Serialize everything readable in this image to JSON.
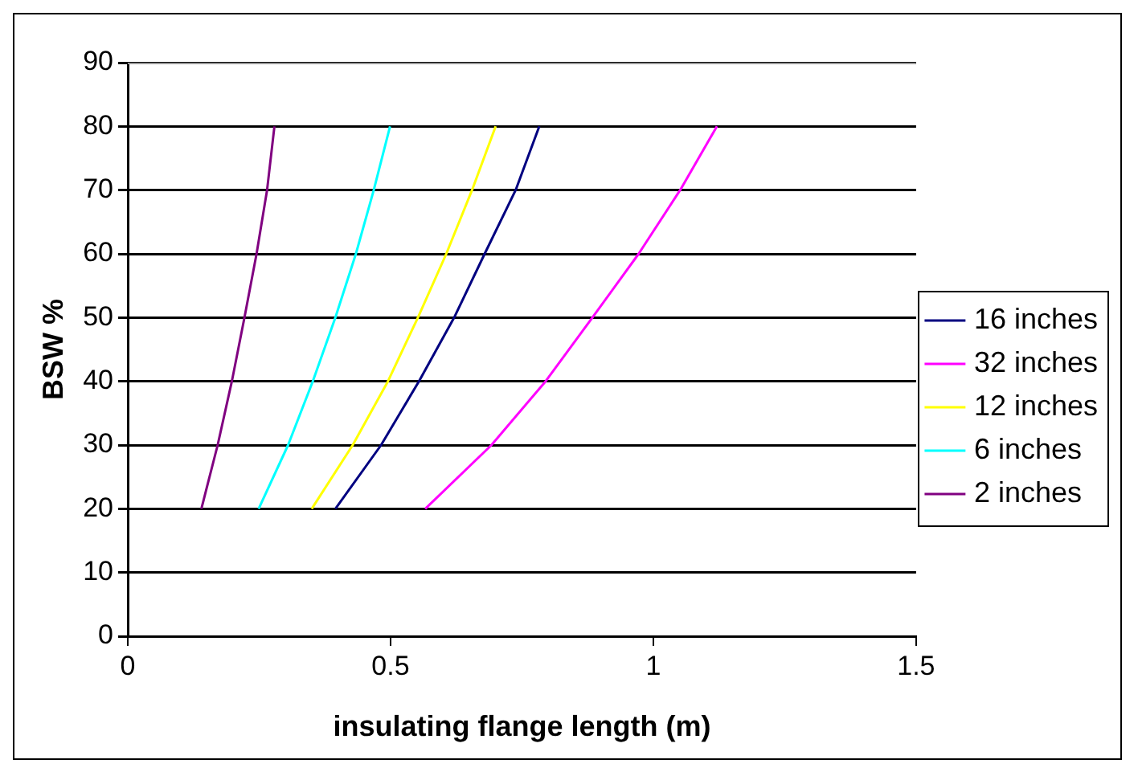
{
  "chart_data": {
    "type": "line",
    "xlabel": "insulating flange length (m)",
    "ylabel": "BSW %",
    "xlim": [
      0,
      1.5
    ],
    "xticks": [
      0,
      0.5,
      1,
      1.5
    ],
    "ylim": [
      0,
      90
    ],
    "yticks": [
      0,
      10,
      20,
      30,
      40,
      50,
      60,
      70,
      80,
      90
    ],
    "grid": "y",
    "legend": "right",
    "marker": "none",
    "line_style": "solid",
    "series": [
      {
        "name": "16 inches",
        "color": "#000080",
        "x": [
          0.395,
          0.482,
          0.554,
          0.621,
          0.679,
          0.738,
          0.783
        ],
        "values": [
          20,
          30,
          40,
          50,
          60,
          70,
          80
        ]
      },
      {
        "name": "32 inches",
        "color": "#ff00ff",
        "x": [
          0.566,
          0.692,
          0.795,
          0.884,
          0.972,
          1.051,
          1.121
        ],
        "values": [
          20,
          30,
          40,
          50,
          60,
          70,
          80
        ]
      },
      {
        "name": "12 inches",
        "color": "#ffff00",
        "x": [
          0.35,
          0.428,
          0.495,
          0.552,
          0.606,
          0.655,
          0.7
        ],
        "values": [
          20,
          30,
          40,
          50,
          60,
          70,
          80
        ]
      },
      {
        "name": "6 inches",
        "color": "#00ffff",
        "x": [
          0.249,
          0.305,
          0.352,
          0.395,
          0.434,
          0.468,
          0.499
        ],
        "values": [
          20,
          30,
          40,
          50,
          60,
          70,
          80
        ]
      },
      {
        "name": "2 inches",
        "color": "#800080",
        "x": [
          0.14,
          0.171,
          0.198,
          0.222,
          0.245,
          0.265,
          0.279
        ],
        "values": [
          20,
          30,
          40,
          50,
          60,
          70,
          80
        ]
      }
    ]
  }
}
